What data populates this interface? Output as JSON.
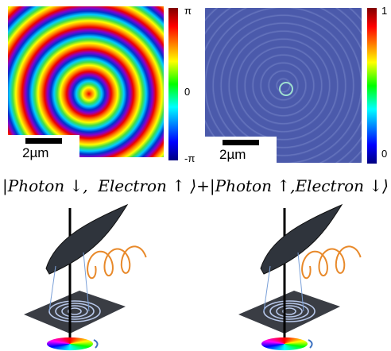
{
  "top_left": {
    "colorbar_ticks": [
      "π",
      "0",
      "-π"
    ],
    "scale_bar": "2µm"
  },
  "top_right": {
    "colorbar_ticks": [
      "1",
      "0"
    ],
    "scale_bar": "2µm"
  },
  "equation": {
    "left_term": "|Photon ↓,  Electron ↑ ⟩",
    "plus": "+",
    "right_term": "|Photon ↑,Electron ↓⟩"
  }
}
